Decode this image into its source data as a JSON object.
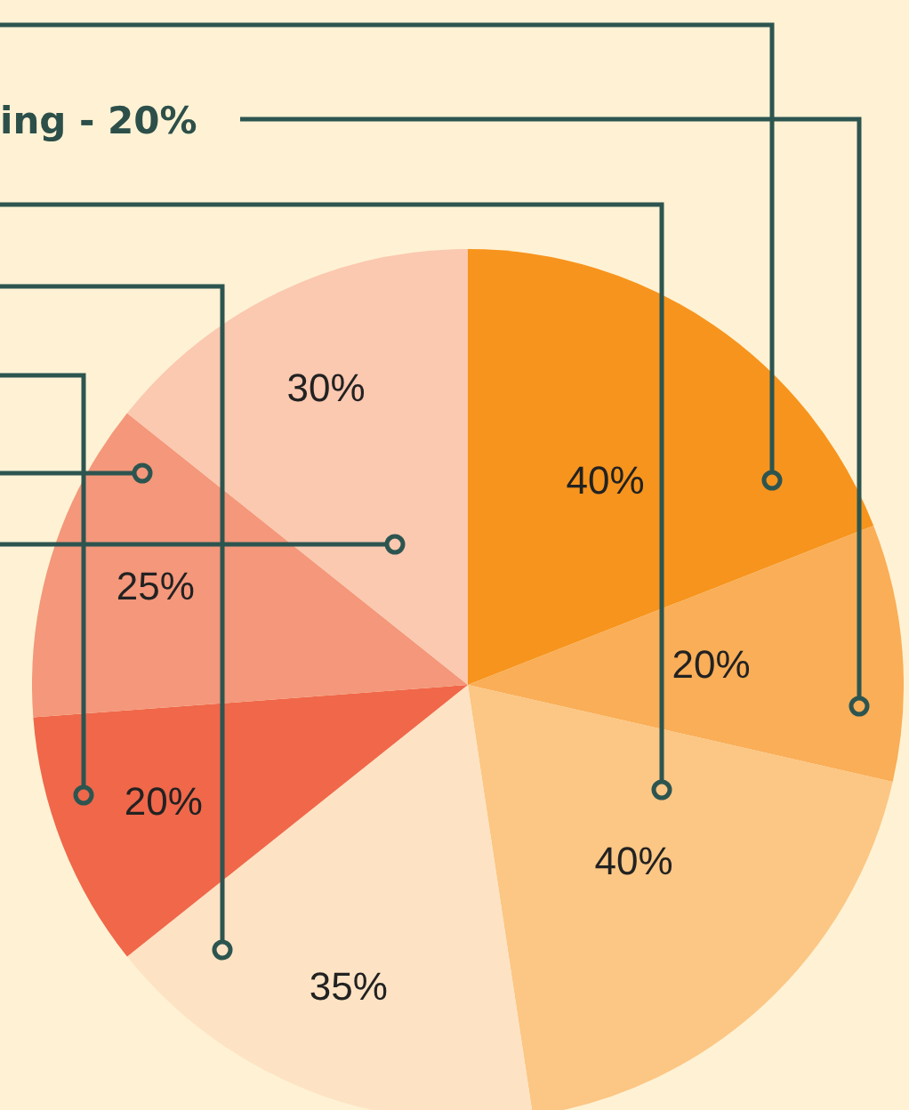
{
  "chart_data": {
    "type": "pie",
    "categories": [
      null,
      null,
      null,
      null,
      null,
      null,
      null
    ],
    "values": [
      40,
      20,
      40,
      35,
      20,
      25,
      30
    ],
    "colors": [
      "#f7941d",
      "#f9ae57",
      "#fcc684",
      "#fde3c4",
      "#f0674a",
      "#f4977a",
      "#fbc8b0"
    ],
    "value_labels": [
      "40%",
      "20%",
      "40%",
      "35%",
      "20%",
      "25%",
      "30%"
    ],
    "annotations": [
      "ing - 20%"
    ],
    "legend": false
  }
}
